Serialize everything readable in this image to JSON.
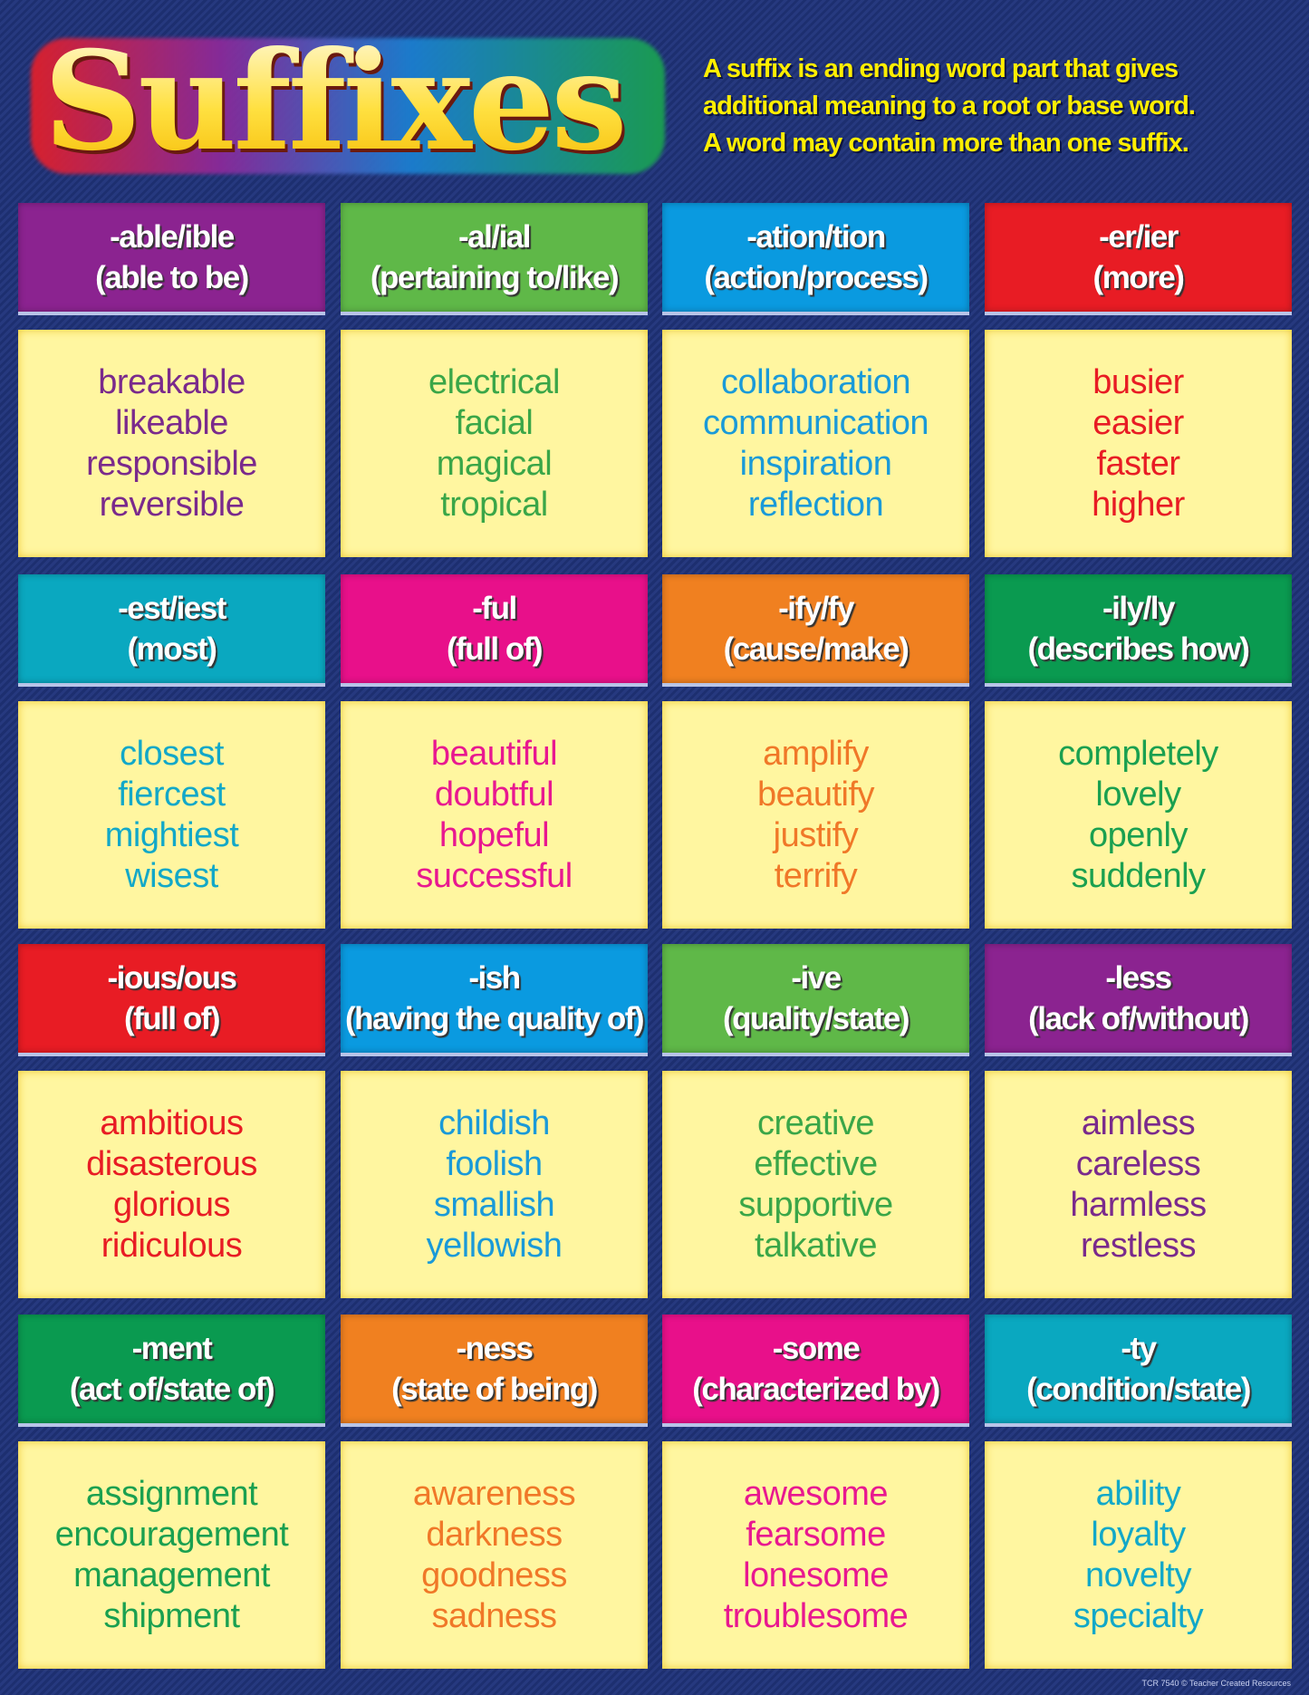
{
  "title": "Suffixes",
  "description": [
    "A suffix is an ending word part that gives",
    "additional meaning to a root or base word.",
    "A word may contain more than one suffix."
  ],
  "credit": "TCR 7540 © Teacher Created Resources",
  "cards": [
    {
      "suffix": "-able/ible",
      "meaning": "(able to be)",
      "color": "#8b2390",
      "text_color": "#7a2a8c",
      "words": [
        "breakable",
        "likeable",
        "responsible",
        "reversible"
      ]
    },
    {
      "suffix": "-al/ial",
      "meaning": "(pertaining to/like)",
      "color": "#5fb848",
      "text_color": "#3aa648",
      "words": [
        "electrical",
        "facial",
        "magical",
        "tropical"
      ]
    },
    {
      "suffix": "-ation/tion",
      "meaning": "(action/process)",
      "color": "#0a9ae0",
      "text_color": "#1a9ad8",
      "words": [
        "collaboration",
        "communication",
        "inspiration",
        "reflection"
      ]
    },
    {
      "suffix": "-er/ier",
      "meaning": "(more)",
      "color": "#e81c24",
      "text_color": "#e81c24",
      "words": [
        "busier",
        "easier",
        "faster",
        "higher"
      ]
    },
    {
      "suffix": "-est/iest",
      "meaning": "(most)",
      "color": "#0aa8c0",
      "text_color": "#12a8c8",
      "words": [
        "closest",
        "fiercest",
        "mightiest",
        "wisest"
      ]
    },
    {
      "suffix": "-ful",
      "meaning": "(full of)",
      "color": "#e8108a",
      "text_color": "#e81890",
      "words": [
        "beautiful",
        "doubtful",
        "hopeful",
        "successful"
      ]
    },
    {
      "suffix": "-ify/fy",
      "meaning": "(cause/make)",
      "color": "#f08020",
      "text_color": "#f07828",
      "words": [
        "amplify",
        "beautify",
        "justify",
        "terrify"
      ]
    },
    {
      "suffix": "-ily/ly",
      "meaning": "(describes how)",
      "color": "#0a9a50",
      "text_color": "#1aa050",
      "words": [
        "completely",
        "lovely",
        "openly",
        "suddenly"
      ]
    },
    {
      "suffix": "-ious/ous",
      "meaning": "(full of)",
      "color": "#e81c24",
      "text_color": "#e81c24",
      "words": [
        "ambitious",
        "disasterous",
        "glorious",
        "ridiculous"
      ]
    },
    {
      "suffix": "-ish",
      "meaning": "(having the quality of)",
      "color": "#0a9ae0",
      "text_color": "#1a9ad8",
      "words": [
        "childish",
        "foolish",
        "smallish",
        "yellowish"
      ]
    },
    {
      "suffix": "-ive",
      "meaning": "(quality/state)",
      "color": "#5fb848",
      "text_color": "#3aa648",
      "words": [
        "creative",
        "effective",
        "supportive",
        "talkative"
      ]
    },
    {
      "suffix": "-less",
      "meaning": "(lack of/without)",
      "color": "#8b2390",
      "text_color": "#7a2a8c",
      "words": [
        "aimless",
        "careless",
        "harmless",
        "restless"
      ]
    },
    {
      "suffix": "-ment",
      "meaning": "(act of/state of)",
      "color": "#0a9a50",
      "text_color": "#1aa050",
      "words": [
        "assignment",
        "encouragement",
        "management",
        "shipment"
      ]
    },
    {
      "suffix": "-ness",
      "meaning": "(state of being)",
      "color": "#f08020",
      "text_color": "#f07828",
      "words": [
        "awareness",
        "darkness",
        "goodness",
        "sadness"
      ]
    },
    {
      "suffix": "-some",
      "meaning": "(characterized by)",
      "color": "#e8108a",
      "text_color": "#e81890",
      "words": [
        "awesome",
        "fearsome",
        "lonesome",
        "troublesome"
      ]
    },
    {
      "suffix": "-ty",
      "meaning": "(condition/state)",
      "color": "#0aa8c0",
      "text_color": "#12a8c8",
      "words": [
        "ability",
        "loyalty",
        "novelty",
        "specialty"
      ]
    }
  ]
}
